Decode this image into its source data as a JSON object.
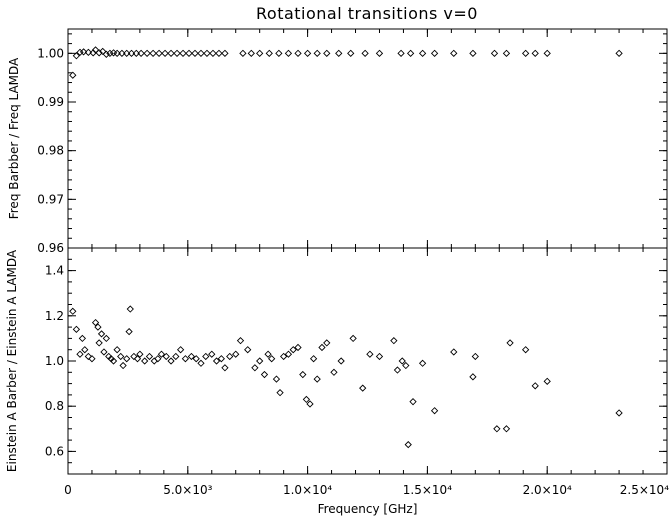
{
  "chart_data": [
    {
      "type": "scatter",
      "title": "Rotational transitions v=0",
      "ylabel": "Freq Barbber / Freq LAMDA",
      "xlabel": "",
      "xlim": [
        0,
        25000
      ],
      "ylim": [
        0.96,
        1.005
      ],
      "yticks": [
        0.96,
        0.97,
        0.98,
        0.99,
        1.0
      ],
      "ytick_labels": [
        "0.96",
        "0.97",
        "0.98",
        "0.99",
        "1.00"
      ],
      "marker": "diamond",
      "points": [
        [
          200,
          0.9955
        ],
        [
          350,
          0.9995
        ],
        [
          500,
          1.0002
        ],
        [
          650,
          1.0003
        ],
        [
          850,
          1.0002
        ],
        [
          1050,
          1.0001
        ],
        [
          1150,
          1.0007
        ],
        [
          1300,
          1.0001
        ],
        [
          1450,
          1.0004
        ],
        [
          1600,
          0.9998
        ],
        [
          1750,
          1.0
        ],
        [
          1900,
          1.0001
        ],
        [
          2050,
          1.0
        ],
        [
          2250,
          1.0
        ],
        [
          2450,
          1.0
        ],
        [
          2650,
          1.0
        ],
        [
          2850,
          1.0
        ],
        [
          3050,
          1.0
        ],
        [
          3300,
          1.0
        ],
        [
          3550,
          1.0
        ],
        [
          3800,
          1.0
        ],
        [
          4050,
          1.0
        ],
        [
          4300,
          1.0
        ],
        [
          4550,
          1.0
        ],
        [
          4800,
          1.0
        ],
        [
          5050,
          1.0
        ],
        [
          5300,
          1.0
        ],
        [
          5550,
          1.0
        ],
        [
          5800,
          1.0
        ],
        [
          6050,
          1.0
        ],
        [
          6300,
          1.0
        ],
        [
          6550,
          1.0
        ],
        [
          7300,
          1.0
        ],
        [
          7650,
          1.0
        ],
        [
          8000,
          1.0
        ],
        [
          8400,
          1.0
        ],
        [
          8800,
          1.0
        ],
        [
          9200,
          1.0
        ],
        [
          9600,
          1.0
        ],
        [
          10000,
          1.0
        ],
        [
          10400,
          1.0
        ],
        [
          10800,
          1.0
        ],
        [
          11300,
          1.0
        ],
        [
          11800,
          1.0
        ],
        [
          12400,
          1.0
        ],
        [
          13000,
          1.0
        ],
        [
          13900,
          1.0
        ],
        [
          14300,
          1.0
        ],
        [
          14800,
          1.0
        ],
        [
          15300,
          1.0
        ],
        [
          16100,
          1.0
        ],
        [
          16900,
          1.0
        ],
        [
          17800,
          1.0
        ],
        [
          18300,
          1.0
        ],
        [
          19100,
          1.0
        ],
        [
          19500,
          1.0
        ],
        [
          20000,
          1.0
        ],
        [
          23000,
          1.0
        ]
      ]
    },
    {
      "type": "scatter",
      "ylabel": "Einstein A Barber / Einstein A LAMDA",
      "xlabel": "Frequency [GHz]",
      "xlim": [
        0,
        25000
      ],
      "ylim": [
        0.5,
        1.5
      ],
      "xticks": [
        0,
        5000,
        10000,
        15000,
        20000,
        25000
      ],
      "xtick_labels": [
        "0",
        "5.0×10³",
        "1.0×10⁴",
        "1.5×10⁴",
        "2.0×10⁴",
        "2.5×10⁴"
      ],
      "yticks": [
        0.6,
        0.8,
        1.0,
        1.2,
        1.4
      ],
      "ytick_labels": [
        "0.6",
        "0.8",
        "1.0",
        "1.2",
        "1.4"
      ],
      "marker": "diamond",
      "points": [
        [
          200,
          1.22
        ],
        [
          350,
          1.14
        ],
        [
          500,
          1.03
        ],
        [
          600,
          1.1
        ],
        [
          700,
          1.05
        ],
        [
          850,
          1.02
        ],
        [
          1000,
          1.01
        ],
        [
          1150,
          1.17
        ],
        [
          1250,
          1.15
        ],
        [
          1300,
          1.08
        ],
        [
          1400,
          1.12
        ],
        [
          1500,
          1.04
        ],
        [
          1600,
          1.1
        ],
        [
          1700,
          1.02
        ],
        [
          1800,
          1.01
        ],
        [
          1900,
          1.0
        ],
        [
          2050,
          1.05
        ],
        [
          2200,
          1.02
        ],
        [
          2300,
          0.98
        ],
        [
          2450,
          1.01
        ],
        [
          2550,
          1.13
        ],
        [
          2600,
          1.23
        ],
        [
          2750,
          1.02
        ],
        [
          2900,
          1.01
        ],
        [
          3000,
          1.03
        ],
        [
          3200,
          1.0
        ],
        [
          3400,
          1.02
        ],
        [
          3600,
          1.0
        ],
        [
          3750,
          1.01
        ],
        [
          3900,
          1.03
        ],
        [
          4100,
          1.02
        ],
        [
          4300,
          1.0
        ],
        [
          4500,
          1.02
        ],
        [
          4700,
          1.05
        ],
        [
          4900,
          1.01
        ],
        [
          5150,
          1.02
        ],
        [
          5350,
          1.01
        ],
        [
          5550,
          0.99
        ],
        [
          5750,
          1.02
        ],
        [
          6000,
          1.03
        ],
        [
          6200,
          1.0
        ],
        [
          6400,
          1.01
        ],
        [
          6550,
          0.97
        ],
        [
          6750,
          1.02
        ],
        [
          7000,
          1.03
        ],
        [
          7200,
          1.09
        ],
        [
          7500,
          1.05
        ],
        [
          7800,
          0.97
        ],
        [
          8000,
          1.0
        ],
        [
          8200,
          0.94
        ],
        [
          8350,
          1.03
        ],
        [
          8500,
          1.01
        ],
        [
          8700,
          0.92
        ],
        [
          8850,
          0.86
        ],
        [
          9000,
          1.02
        ],
        [
          9200,
          1.03
        ],
        [
          9400,
          1.05
        ],
        [
          9600,
          1.06
        ],
        [
          9800,
          0.94
        ],
        [
          9950,
          0.83
        ],
        [
          10100,
          0.81
        ],
        [
          10250,
          1.01
        ],
        [
          10400,
          0.92
        ],
        [
          10600,
          1.06
        ],
        [
          10800,
          1.08
        ],
        [
          11100,
          0.95
        ],
        [
          11400,
          1.0
        ],
        [
          11900,
          1.1
        ],
        [
          12300,
          0.88
        ],
        [
          12600,
          1.03
        ],
        [
          13000,
          1.02
        ],
        [
          13600,
          1.09
        ],
        [
          13750,
          0.96
        ],
        [
          13950,
          1.0
        ],
        [
          14100,
          0.98
        ],
        [
          14200,
          0.63
        ],
        [
          14400,
          0.82
        ],
        [
          14800,
          0.99
        ],
        [
          15300,
          0.78
        ],
        [
          16100,
          1.04
        ],
        [
          16900,
          0.93
        ],
        [
          17000,
          1.02
        ],
        [
          17900,
          0.7
        ],
        [
          18300,
          0.7
        ],
        [
          18450,
          1.08
        ],
        [
          19100,
          1.05
        ],
        [
          19500,
          0.89
        ],
        [
          20000,
          0.91
        ],
        [
          23000,
          0.77
        ]
      ]
    }
  ]
}
